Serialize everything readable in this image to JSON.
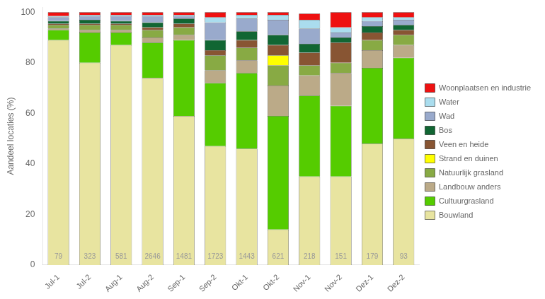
{
  "chart_data": {
    "type": "bar",
    "stacked": true,
    "ylabel": "Aandeel locaties (%)",
    "categories": [
      "Jul-1",
      "Jul-2",
      "Aug-1",
      "Aug-2",
      "Sep-1",
      "Sep-2",
      "Okt-1",
      "Okt-2",
      "Nov-1",
      "Nov-2",
      "Dez-1",
      "Dez-2"
    ],
    "series": [
      {
        "name": "Bouwland",
        "color": "#E8E4A0",
        "values": [
          89.0,
          80.0,
          87.0,
          74.0,
          59.0,
          47.0,
          46.0,
          14.0,
          35.0,
          35.0,
          48.0,
          50.0
        ]
      },
      {
        "name": "Cultuurgrasland",
        "color": "#55CC00",
        "values": [
          4.0,
          12.0,
          5.0,
          14.0,
          30.0,
          25.0,
          30.0,
          45.0,
          32.0,
          28.0,
          30.0,
          32.0
        ]
      },
      {
        "name": "Landbouw anders",
        "color": "#BBAA88",
        "values": [
          0.5,
          1.0,
          1.0,
          2.0,
          2.0,
          5.0,
          5.0,
          12.0,
          8.0,
          13.0,
          7.0,
          5.0
        ]
      },
      {
        "name": "Natuurlijk grasland",
        "color": "#88AA44",
        "values": [
          1.5,
          2.0,
          2.0,
          3.0,
          3.0,
          6.0,
          5.0,
          8.0,
          4.0,
          4.0,
          4.0,
          4.0
        ]
      },
      {
        "name": "Strand en duinen",
        "color": "#FFFF00",
        "values": [
          0.0,
          0.0,
          0.0,
          0.0,
          0.0,
          0.0,
          0.0,
          4.0,
          0.0,
          0.0,
          0.0,
          0.0
        ]
      },
      {
        "name": "Veen en heide",
        "color": "#885533",
        "values": [
          0.5,
          0.5,
          0.5,
          1.0,
          1.5,
          2.0,
          3.0,
          4.0,
          5.0,
          8.0,
          3.0,
          2.0
        ]
      },
      {
        "name": "Bos",
        "color": "#116633",
        "values": [
          1.0,
          1.5,
          1.0,
          2.0,
          2.0,
          4.0,
          3.5,
          4.0,
          3.5,
          2.0,
          2.5,
          2.0
        ]
      },
      {
        "name": "Wad",
        "color": "#99AACC",
        "values": [
          1.5,
          1.5,
          2.0,
          2.5,
          1.0,
          7.0,
          5.0,
          6.0,
          6.0,
          2.0,
          2.0,
          2.0
        ]
      },
      {
        "name": "Water",
        "color": "#AADDEE",
        "values": [
          0.5,
          0.5,
          0.5,
          0.5,
          0.5,
          2.0,
          1.5,
          2.0,
          3.5,
          2.0,
          1.5,
          1.0
        ]
      },
      {
        "name": "Woonplaatsen en industrie",
        "color": "#EE1111",
        "values": [
          1.5,
          1.0,
          1.0,
          1.0,
          1.0,
          2.0,
          1.0,
          1.0,
          2.5,
          6.0,
          2.0,
          2.0
        ]
      }
    ],
    "annotations": [
      {
        "text": "79",
        "x": "Jul-1",
        "y": 1.5,
        "color": "#999999"
      },
      {
        "text": "323",
        "x": "Jul-2",
        "y": 1.5,
        "color": "#999999"
      },
      {
        "text": "581",
        "x": "Aug-1",
        "y": 1.5,
        "color": "#999999"
      },
      {
        "text": "2646",
        "x": "Aug-2",
        "y": 1.5,
        "color": "#999999"
      },
      {
        "text": "1481",
        "x": "Sep-1",
        "y": 1.5,
        "color": "#999999"
      },
      {
        "text": "1723",
        "x": "Sep-2",
        "y": 1.5,
        "color": "#999999"
      },
      {
        "text": "1443",
        "x": "Okt-1",
        "y": 1.5,
        "color": "#999999"
      },
      {
        "text": "621",
        "x": "Okt-2",
        "y": 1.5,
        "color": "#999999"
      },
      {
        "text": "218",
        "x": "Nov-1",
        "y": 1.5,
        "color": "#999999"
      },
      {
        "text": "151",
        "x": "Nov-2",
        "y": 1.5,
        "color": "#999999"
      },
      {
        "text": "179",
        "x": "Dez-1",
        "y": 1.5,
        "color": "#999999"
      },
      {
        "text": "93",
        "x": "Dez-2",
        "y": 1.5,
        "color": "#999999"
      }
    ],
    "ylim": [
      0,
      102
    ],
    "yticks": [
      0,
      20,
      40,
      60,
      80,
      100
    ],
    "grid": false,
    "legend": "right"
  }
}
